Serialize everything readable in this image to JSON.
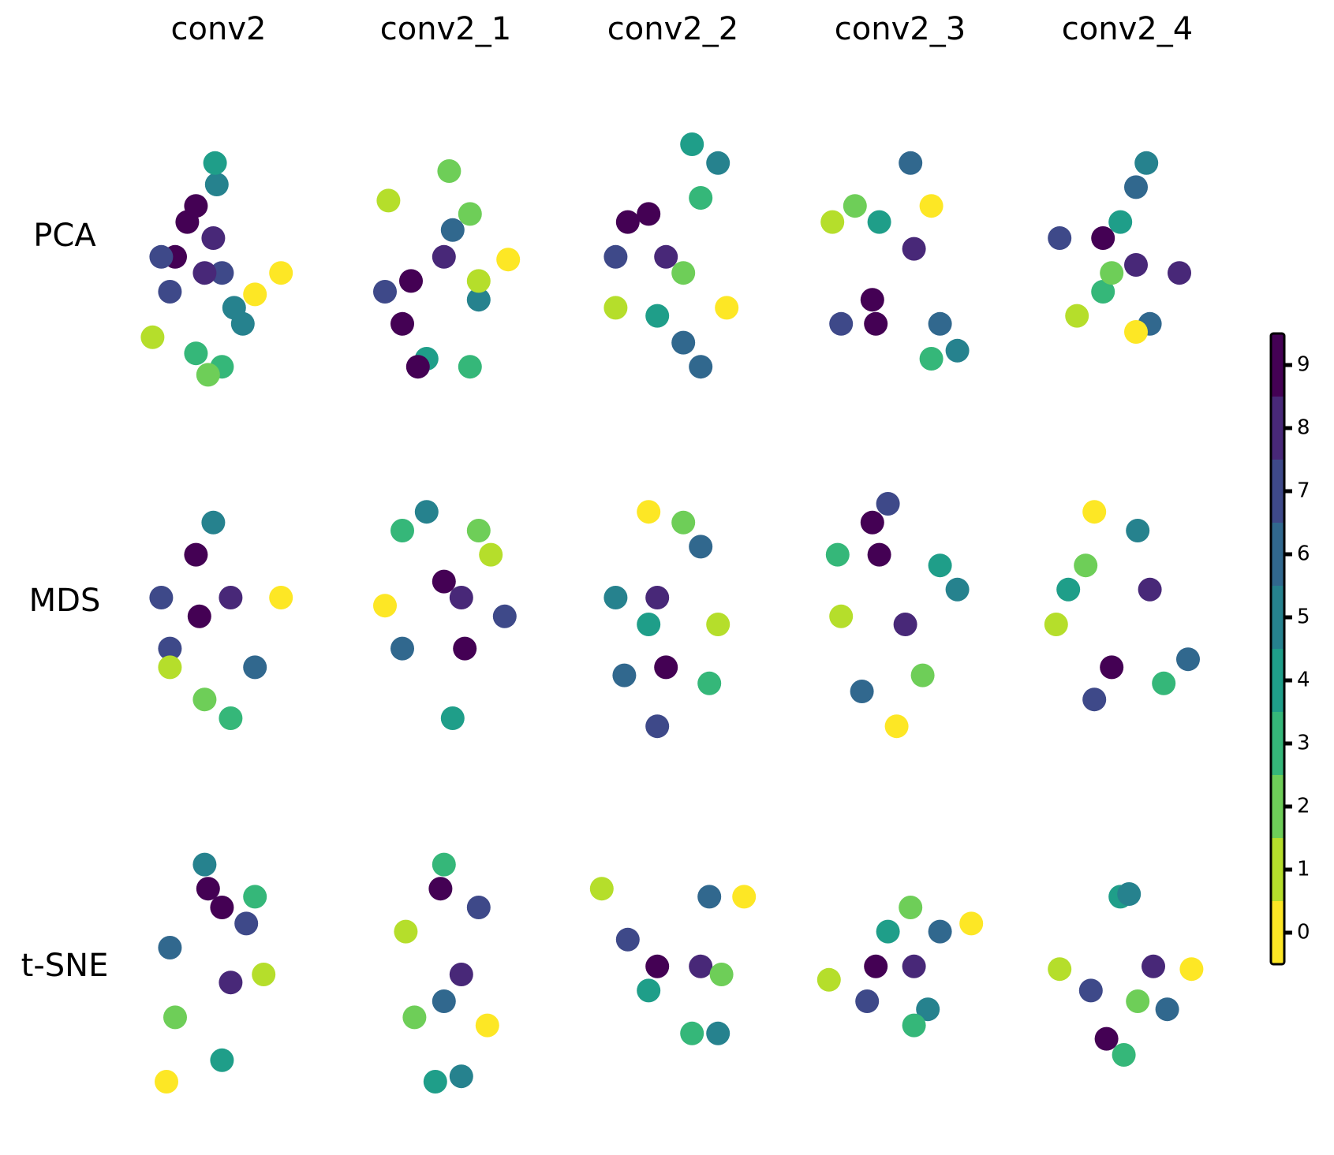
{
  "chart_data": {
    "type": "scatter-grid",
    "columns": [
      "conv2",
      "conv2_1",
      "conv2_2",
      "conv2_3",
      "conv2_4"
    ],
    "rows": [
      "PCA",
      "MDS",
      "t-SNE"
    ],
    "xlim": [
      0,
      100
    ],
    "ylim": [
      0,
      100
    ],
    "colorbar": {
      "lim": [
        -0.5,
        9.5
      ],
      "ticks": [
        0,
        1,
        2,
        3,
        4,
        5,
        6,
        7,
        8,
        9
      ],
      "colors": [
        "#fde725",
        "#b5de2b",
        "#6ece58",
        "#35b779",
        "#1f9e89",
        "#26828e",
        "#31688e",
        "#3e4989",
        "#482878",
        "#440154"
      ]
    },
    "panels": [
      [
        {
          "x": [
            32,
            37,
            25,
            17,
            22,
            52,
            42,
            47,
            86,
            71,
            12,
            37,
            52,
            49,
            59,
            64,
            44,
            48
          ],
          "y": [
            66,
            72,
            53,
            53,
            40,
            47,
            47,
            60,
            47,
            39,
            23,
            17,
            12,
            80,
            34,
            28,
            9,
            88
          ],
          "c": [
            9,
            9,
            9,
            7,
            7,
            7,
            8,
            8,
            0,
            0,
            1,
            3,
            3,
            5,
            5,
            5,
            2,
            4
          ]
        },
        {
          "x": [
            17,
            52,
            25,
            30,
            49,
            15,
            54,
            69,
            86,
            39,
            34,
            64,
            69,
            64
          ],
          "y": [
            74,
            85,
            28,
            44,
            53,
            40,
            63,
            37,
            52,
            15,
            12,
            69,
            44,
            12
          ],
          "c": [
            1,
            2,
            9,
            9,
            8,
            7,
            6,
            5,
            0,
            4,
            9,
            2,
            1,
            3
          ]
        },
        {
          "x": [
            24,
            36,
            17,
            76,
            61,
            17,
            56,
            81,
            46,
            66,
            66,
            56,
            41
          ],
          "y": [
            66,
            69,
            53,
            88,
            95,
            34,
            21,
            34,
            53,
            75,
            12,
            47,
            31
          ],
          "c": [
            9,
            9,
            7,
            5,
            4,
            1,
            6,
            0,
            8,
            3,
            6,
            2,
            4
          ]
        },
        {
          "x": [
            56,
            11,
            34,
            36,
            58,
            16,
            83,
            38,
            68,
            24,
            73,
            68
          ],
          "y": [
            88,
            66,
            37,
            28,
            56,
            28,
            18,
            66,
            15,
            72,
            28,
            72
          ],
          "c": [
            6,
            1,
            9,
            9,
            8,
            7,
            5,
            4,
            3,
            2,
            6,
            0
          ]
        },
        {
          "x": [
            61,
            55,
            36,
            55,
            11,
            21,
            36,
            63,
            55,
            46,
            41,
            80
          ],
          "y": [
            88,
            79,
            60,
            50,
            60,
            31,
            40,
            28,
            25,
            66,
            47,
            47
          ],
          "c": [
            5,
            6,
            9,
            8,
            7,
            1,
            3,
            6,
            0,
            4,
            2,
            8
          ]
        }
      ],
      [
        {
          "x": [
            37,
            39,
            17,
            22,
            86,
            42,
            57,
            47,
            71,
            57,
            22
          ],
          "y": [
            71,
            48,
            55,
            36,
            55,
            17,
            10,
            83,
            29,
            55,
            29
          ],
          "c": [
            9,
            9,
            7,
            7,
            0,
            2,
            3,
            5,
            6,
            8,
            1
          ]
        },
        {
          "x": [
            15,
            39,
            61,
            49,
            84,
            25,
            54,
            59,
            69,
            76,
            25
          ],
          "y": [
            52,
            87,
            36,
            61,
            48,
            36,
            10,
            55,
            80,
            71,
            80
          ],
          "c": [
            0,
            5,
            9,
            9,
            7,
            6,
            4,
            8,
            2,
            1,
            3
          ]
        },
        {
          "x": [
            36,
            56,
            66,
            17,
            46,
            41,
            41,
            76,
            36,
            71,
            22
          ],
          "y": [
            87,
            83,
            74,
            55,
            29,
            55,
            7,
            45,
            45,
            23,
            26
          ],
          "c": [
            0,
            2,
            6,
            5,
            9,
            8,
            7,
            1,
            4,
            3,
            6
          ]
        },
        {
          "x": [
            38,
            34,
            53,
            16,
            83,
            28,
            63,
            48,
            14,
            73,
            43
          ],
          "y": [
            71,
            83,
            45,
            48,
            58,
            20,
            26,
            7,
            71,
            67,
            90
          ],
          "c": [
            9,
            9,
            8,
            1,
            5,
            6,
            2,
            0,
            3,
            4,
            7
          ]
        },
        {
          "x": [
            31,
            56,
            26,
            63,
            9,
            41,
            31,
            71,
            16,
            85
          ],
          "y": [
            87,
            80,
            67,
            58,
            45,
            29,
            17,
            23,
            58,
            32
          ],
          "c": [
            0,
            5,
            2,
            8,
            1,
            9,
            7,
            3,
            4,
            6
          ]
        }
      ],
      [
        {
          "x": [
            44,
            52,
            22,
            66,
            42,
            25,
            20,
            52,
            76,
            57,
            71
          ],
          "y": [
            82,
            75,
            60,
            69,
            91,
            34,
            10,
            18,
            50,
            47,
            79
          ],
          "c": [
            9,
            9,
            6,
            7,
            5,
            2,
            0,
            4,
            1,
            8,
            3
          ]
        },
        {
          "x": [
            47,
            27,
            32,
            74,
            44,
            59,
            69,
            59,
            49,
            49
          ],
          "y": [
            82,
            66,
            34,
            31,
            10,
            12,
            75,
            50,
            40,
            91
          ],
          "c": [
            9,
            1,
            2,
            0,
            4,
            5,
            7,
            8,
            6,
            3
          ]
        },
        {
          "x": [
            9,
            91,
            24,
            41,
            66,
            71,
            76,
            61,
            36,
            78
          ],
          "y": [
            82,
            79,
            63,
            53,
            53,
            79,
            28,
            28,
            44,
            50
          ],
          "c": [
            1,
            0,
            7,
            9,
            8,
            6,
            5,
            3,
            4,
            2
          ]
        },
        {
          "x": [
            9,
            91,
            36,
            58,
            73,
            66,
            58,
            43,
            56,
            31
          ],
          "y": [
            48,
            69,
            53,
            53,
            66,
            37,
            31,
            66,
            75,
            40
          ],
          "c": [
            1,
            0,
            9,
            8,
            6,
            5,
            3,
            4,
            2,
            7
          ]
        },
        {
          "x": [
            11,
            87,
            46,
            51,
            38,
            65,
            73,
            29,
            48,
            56
          ],
          "y": [
            52,
            52,
            79,
            80,
            26,
            53,
            37,
            44,
            20,
            40
          ],
          "c": [
            1,
            0,
            4,
            5,
            9,
            8,
            6,
            7,
            3,
            2
          ]
        }
      ]
    ]
  }
}
